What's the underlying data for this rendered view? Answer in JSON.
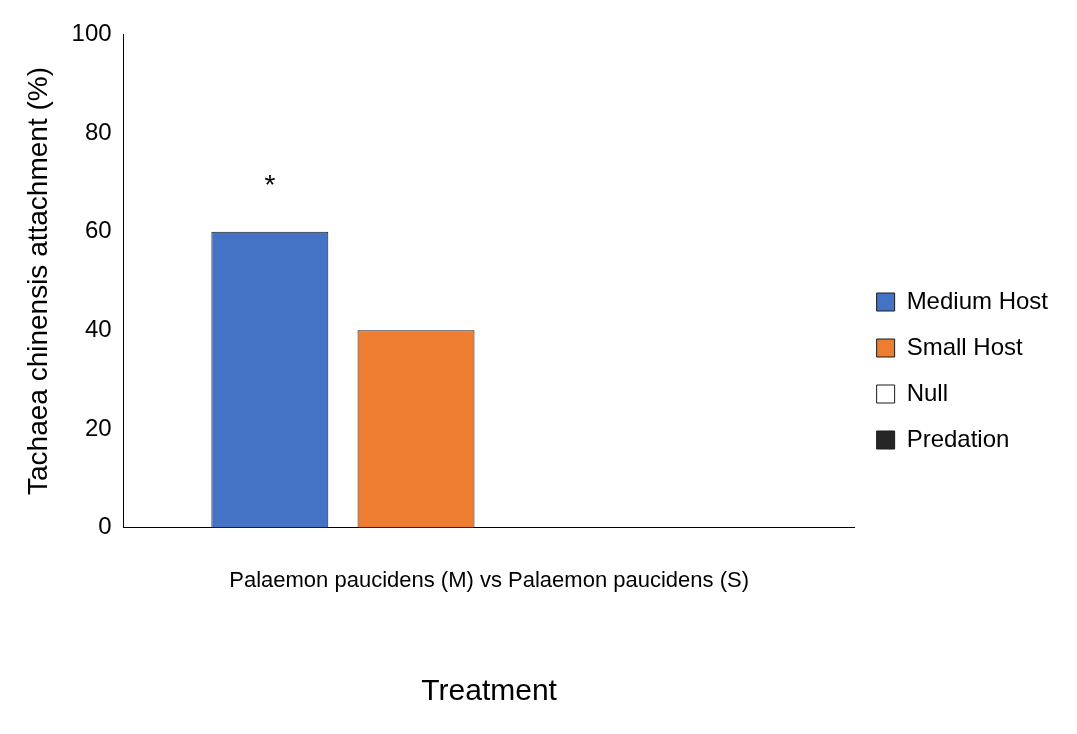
{
  "chart_data": {
    "type": "bar",
    "xlabel": "Treatment",
    "ylabel": "Tachaea chinensis attachment (%)",
    "categories": [
      "Palaemon paucidens (M) vs Palaemon paucidens (S)"
    ],
    "series": [
      {
        "name": "Medium Host",
        "color": "#4472c4",
        "values": [
          60
        ]
      },
      {
        "name": "Small Host",
        "color": "#ed7d31",
        "values": [
          40
        ]
      },
      {
        "name": "Null",
        "color": "#ffffff",
        "values": [
          0
        ]
      },
      {
        "name": "Predation",
        "color": "#262626",
        "values": [
          0
        ]
      }
    ],
    "ylim": [
      0,
      100
    ],
    "yticks": [
      0,
      20,
      40,
      60,
      80,
      100
    ],
    "grid": false,
    "legend": "right",
    "annotations": [
      "*"
    ]
  }
}
